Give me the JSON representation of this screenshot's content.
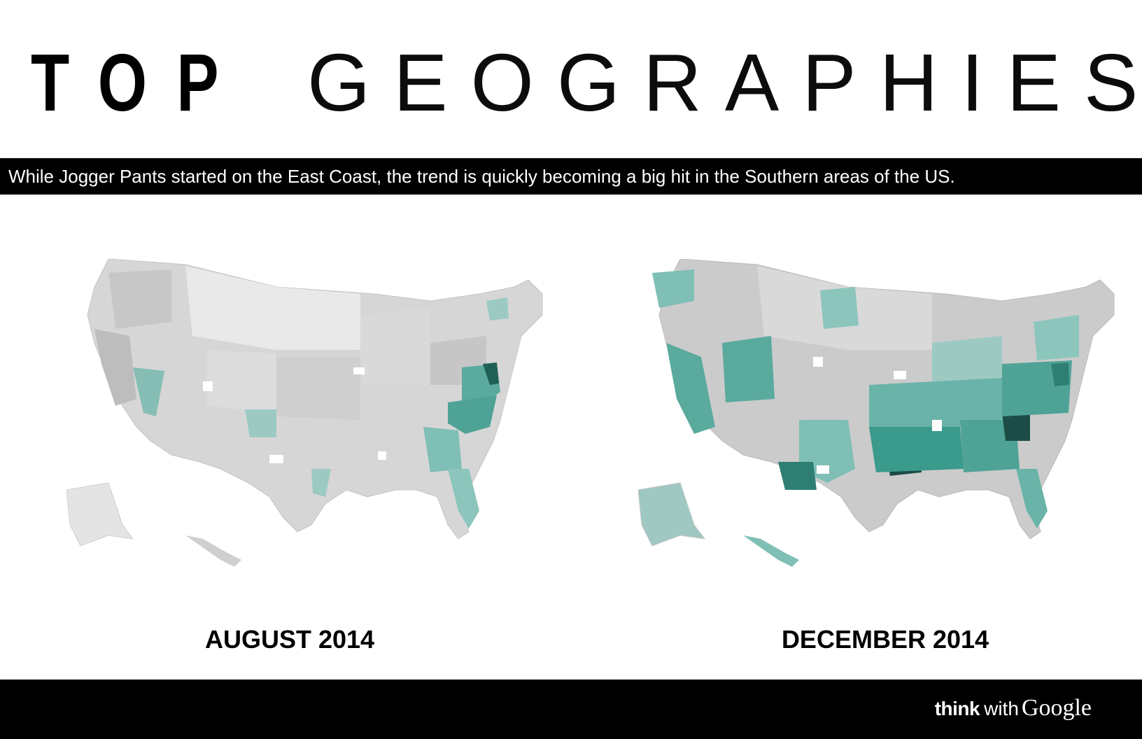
{
  "title": {
    "bold": "TOP",
    "light": "GEOGRAPHIES"
  },
  "subtitle": "While Jogger Pants started on the East Coast, the trend is quickly becoming a big hit in the Southern areas of the US.",
  "maps": [
    {
      "label": "AUGUST 2014",
      "highlight_regions": [
        "Nevada",
        "Virginia",
        "Maryland",
        "North Carolina",
        "South Carolina",
        "Georgia",
        "Florida",
        "Texas (Gulf)",
        "New Mexico",
        "Vermont"
      ],
      "colors": {
        "base": "#d3d3d3",
        "light": "#e6e6e6",
        "mid": "#bdbdbd",
        "teal": "#7fbfb5",
        "teal_dark": "#3a9a8c",
        "darkest": "#1f5f56"
      }
    },
    {
      "label": "DECEMBER 2014",
      "highlight_regions": [
        "Colorado",
        "Texas",
        "Louisiana",
        "Mississippi",
        "Alabama",
        "Georgia",
        "South Carolina",
        "North Carolina",
        "Virginia",
        "Tennessee",
        "Kentucky",
        "Florida",
        "New York",
        "New Jersey",
        "Pacific Northwest",
        "California"
      ],
      "colors": {
        "base": "#c9c9c9",
        "light": "#e0e0e0",
        "teal_light": "#8cc5bc",
        "teal": "#5aaa9e",
        "teal_dark": "#2f7e73",
        "darkest": "#1b4d46"
      }
    }
  ],
  "footer": {
    "logo_think": "think",
    "logo_with": "with",
    "logo_google": "Google"
  }
}
